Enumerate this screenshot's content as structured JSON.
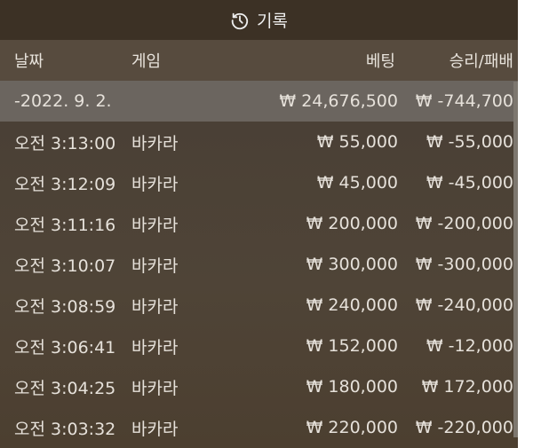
{
  "header": {
    "title": "기록",
    "icon": "history-icon"
  },
  "columns": {
    "date": "날짜",
    "game": "게임",
    "bet": "베팅",
    "winloss": "승리/패배"
  },
  "group": {
    "date": "-2022. 9. 2.",
    "bet": "₩ 24,676,500",
    "winloss": "₩ -744,700"
  },
  "rows": [
    {
      "time": "오전 3:13:00",
      "game": "바카라",
      "bet": "₩ 55,000",
      "winloss": "₩ -55,000"
    },
    {
      "time": "오전 3:12:09",
      "game": "바카라",
      "bet": "₩ 45,000",
      "winloss": "₩ -45,000"
    },
    {
      "time": "오전 3:11:16",
      "game": "바카라",
      "bet": "₩ 200,000",
      "winloss": "₩ -200,000"
    },
    {
      "time": "오전 3:10:07",
      "game": "바카라",
      "bet": "₩ 300,000",
      "winloss": "₩ -300,000"
    },
    {
      "time": "오전 3:08:59",
      "game": "바카라",
      "bet": "₩ 240,000",
      "winloss": "₩ -240,000"
    },
    {
      "time": "오전 3:06:41",
      "game": "바카라",
      "bet": "₩ 152,000",
      "winloss": "₩ -12,000"
    },
    {
      "time": "오전 3:04:25",
      "game": "바카라",
      "bet": "₩ 180,000",
      "winloss": "₩ 172,000"
    },
    {
      "time": "오전 3:03:32",
      "game": "바카라",
      "bet": "₩ 220,000",
      "winloss": "₩ -220,000"
    }
  ]
}
